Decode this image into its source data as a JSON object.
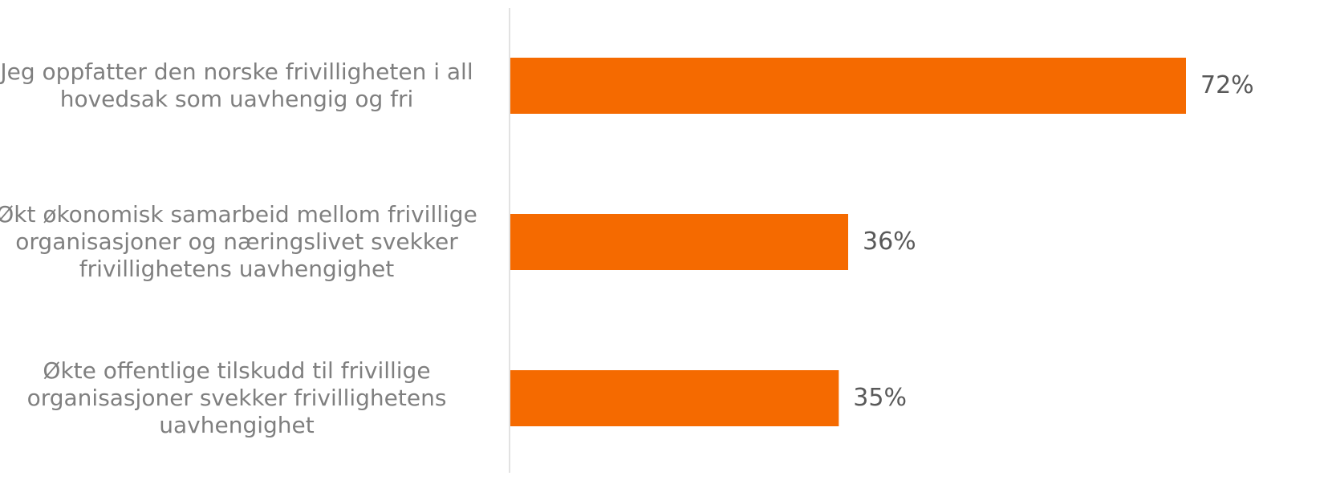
{
  "chart_data": {
    "type": "bar",
    "orientation": "horizontal",
    "categories": [
      "Jeg oppfatter den norske frivilligheten i all hovedsak som uavhengig og fri",
      "Økt økonomisk samarbeid mellom frivillige organisasjoner og næringslivet svekker frivillighetens uavhengighet",
      "Økte offentlige tilskudd til frivillige organisasjoner svekker frivillighetens uavhengighet"
    ],
    "values": [
      72,
      36,
      35
    ],
    "value_labels": [
      "72%",
      "36%",
      "35%"
    ],
    "unit": "%",
    "xlim": [
      0,
      72
    ],
    "grid": false,
    "legend": "none",
    "colors": {
      "bar": "#F56A00",
      "axis": "#d9d9d9",
      "category_text": "#7f7f7f",
      "value_text": "#595959"
    }
  }
}
